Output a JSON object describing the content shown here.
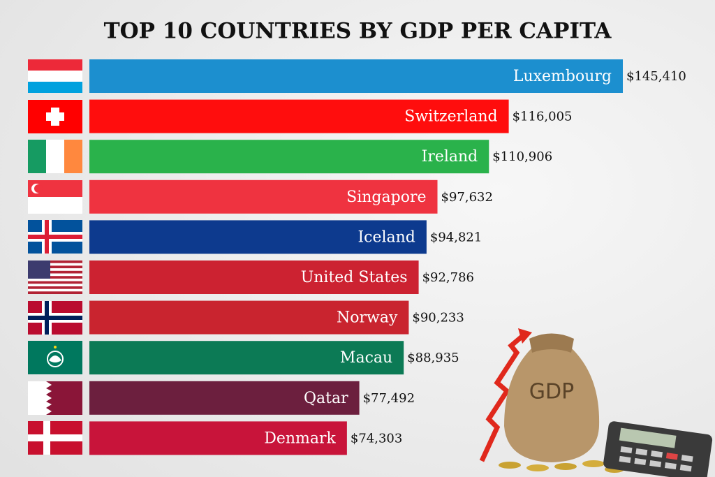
{
  "chart_data": {
    "type": "bar",
    "orientation": "horizontal",
    "title": "TOP 10 COUNTRIES BY GDP PER CAPITA",
    "categories": [
      "Luxembourg",
      "Switzerland",
      "Ireland",
      "Singapore",
      "Iceland",
      "United States",
      "Norway",
      "Macau",
      "Qatar",
      "Denmark"
    ],
    "values": [
      145410,
      116005,
      110906,
      97632,
      94821,
      92786,
      90233,
      88935,
      77492,
      74303
    ],
    "value_labels": [
      "$145,410",
      "$116,005",
      "$110,906",
      "$97,632",
      "$94,821",
      "$92,786",
      "$90,233",
      "$88,935",
      "$77,492",
      "$74,303"
    ],
    "colors": [
      "#1c8fcf",
      "#ff0d0d",
      "#2ab24b",
      "#ef3340",
      "#0d3a8e",
      "#cc2231",
      "#c9242f",
      "#0c7a55",
      "#6c1f3e",
      "#c8143a"
    ],
    "annotation": "GDP"
  }
}
